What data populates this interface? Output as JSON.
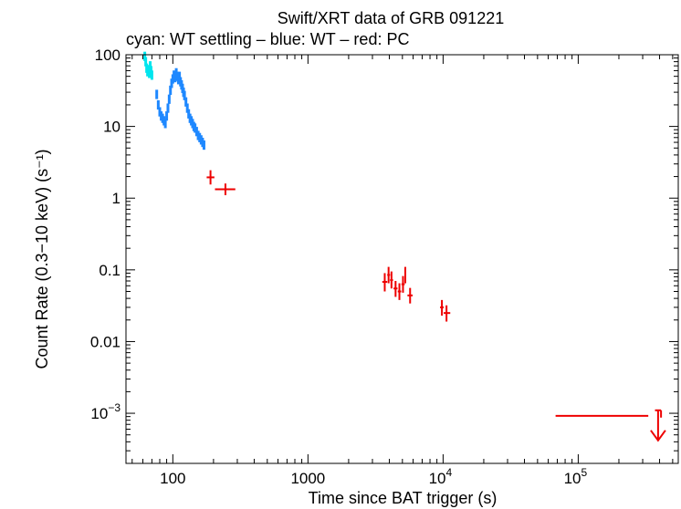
{
  "chart_data": {
    "type": "scatter",
    "title": "Swift/XRT data of GRB 091221",
    "subtitle": "cyan: WT settling – blue: WT – red: PC",
    "xlabel": "Time since BAT trigger (s)",
    "ylabel": "Count Rate (0.3−10 keV) (s⁻¹)",
    "xscale": "log",
    "yscale": "log",
    "xlim": [
      45,
      550000
    ],
    "ylim": [
      0.0002,
      100
    ],
    "x_ticks": [
      {
        "value": 100,
        "label": "100",
        "sup": ""
      },
      {
        "value": 1000,
        "label": "1000",
        "sup": ""
      },
      {
        "value": 10000,
        "label": "10",
        "sup": "4"
      },
      {
        "value": 100000,
        "label": "10",
        "sup": "5"
      }
    ],
    "y_ticks": [
      {
        "value": 100,
        "label": "100",
        "sup": ""
      },
      {
        "value": 10,
        "label": "10",
        "sup": ""
      },
      {
        "value": 1,
        "label": "1",
        "sup": ""
      },
      {
        "value": 0.1,
        "label": "0.1",
        "sup": ""
      },
      {
        "value": 0.01,
        "label": "0.01",
        "sup": ""
      },
      {
        "value": 0.001,
        "label": "10",
        "sup": "−3"
      }
    ],
    "series": [
      {
        "color": "#00e5ee",
        "points": [
          {
            "x": 62,
            "y": 95
          },
          {
            "x": 63,
            "y": 80
          },
          {
            "x": 64,
            "y": 65
          },
          {
            "x": 65,
            "y": 58
          },
          {
            "x": 66,
            "y": 62
          },
          {
            "x": 67,
            "y": 55
          },
          {
            "x": 68,
            "y": 70
          },
          {
            "x": 69,
            "y": 60
          },
          {
            "x": 70,
            "y": 52
          }
        ]
      },
      {
        "color": "#1e88ff",
        "points": [
          {
            "x": 76,
            "y": 28
          },
          {
            "x": 78,
            "y": 20
          },
          {
            "x": 80,
            "y": 16
          },
          {
            "x": 82,
            "y": 14
          },
          {
            "x": 84,
            "y": 13
          },
          {
            "x": 86,
            "y": 12
          },
          {
            "x": 88,
            "y": 11
          },
          {
            "x": 90,
            "y": 14
          },
          {
            "x": 92,
            "y": 18
          },
          {
            "x": 94,
            "y": 24
          },
          {
            "x": 96,
            "y": 32
          },
          {
            "x": 98,
            "y": 40
          },
          {
            "x": 100,
            "y": 46
          },
          {
            "x": 102,
            "y": 52
          },
          {
            "x": 104,
            "y": 48
          },
          {
            "x": 106,
            "y": 56
          },
          {
            "x": 108,
            "y": 50
          },
          {
            "x": 110,
            "y": 45
          },
          {
            "x": 112,
            "y": 50
          },
          {
            "x": 114,
            "y": 42
          },
          {
            "x": 116,
            "y": 38
          },
          {
            "x": 118,
            "y": 34
          },
          {
            "x": 120,
            "y": 30
          },
          {
            "x": 122,
            "y": 27
          },
          {
            "x": 125,
            "y": 22
          },
          {
            "x": 128,
            "y": 18
          },
          {
            "x": 131,
            "y": 15
          },
          {
            "x": 134,
            "y": 13
          },
          {
            "x": 137,
            "y": 12
          },
          {
            "x": 140,
            "y": 11
          },
          {
            "x": 143,
            "y": 10
          },
          {
            "x": 146,
            "y": 9.5
          },
          {
            "x": 150,
            "y": 8.5
          },
          {
            "x": 154,
            "y": 7.5
          },
          {
            "x": 158,
            "y": 7
          },
          {
            "x": 162,
            "y": 6.5
          },
          {
            "x": 166,
            "y": 6
          },
          {
            "x": 170,
            "y": 5.5
          }
        ]
      },
      {
        "color": "#ee0000",
        "points": [
          {
            "x": 190,
            "xlo": 178,
            "xhi": 203,
            "y": 1.95,
            "ylo": 1.55,
            "yhi": 2.45
          },
          {
            "x": 245,
            "xlo": 205,
            "xhi": 290,
            "y": 1.33,
            "ylo": 1.1,
            "yhi": 1.6
          },
          {
            "x": 3700,
            "xlo": 3550,
            "xhi": 3860,
            "y": 0.068,
            "ylo": 0.05,
            "yhi": 0.09
          },
          {
            "x": 3950,
            "xlo": 3860,
            "xhi": 4050,
            "y": 0.085,
            "ylo": 0.065,
            "yhi": 0.11
          },
          {
            "x": 4150,
            "xlo": 4050,
            "xhi": 4260,
            "y": 0.072,
            "ylo": 0.055,
            "yhi": 0.095
          },
          {
            "x": 4450,
            "xlo": 4300,
            "xhi": 4600,
            "y": 0.055,
            "ylo": 0.042,
            "yhi": 0.07
          },
          {
            "x": 4750,
            "xlo": 4620,
            "xhi": 4900,
            "y": 0.05,
            "ylo": 0.038,
            "yhi": 0.065
          },
          {
            "x": 5050,
            "xlo": 4920,
            "xhi": 5200,
            "y": 0.063,
            "ylo": 0.048,
            "yhi": 0.082
          },
          {
            "x": 5250,
            "xlo": 5200,
            "xhi": 5320,
            "y": 0.085,
            "ylo": 0.065,
            "yhi": 0.11
          },
          {
            "x": 5700,
            "xlo": 5450,
            "xhi": 5950,
            "y": 0.044,
            "ylo": 0.034,
            "yhi": 0.056
          },
          {
            "x": 9800,
            "xlo": 9500,
            "xhi": 10100,
            "y": 0.03,
            "ylo": 0.023,
            "yhi": 0.038
          },
          {
            "x": 10600,
            "xlo": 10100,
            "xhi": 11300,
            "y": 0.025,
            "ylo": 0.019,
            "yhi": 0.032
          },
          {
            "x": 195000,
            "xlo": 68000,
            "xhi": 330000,
            "y": 0.00092,
            "ylo": 0.00092,
            "yhi": 0.00092
          },
          {
            "x": 390000,
            "xlo": 370000,
            "xhi": 410000,
            "y": 0.0011,
            "upper_limit": true
          }
        ]
      }
    ]
  }
}
